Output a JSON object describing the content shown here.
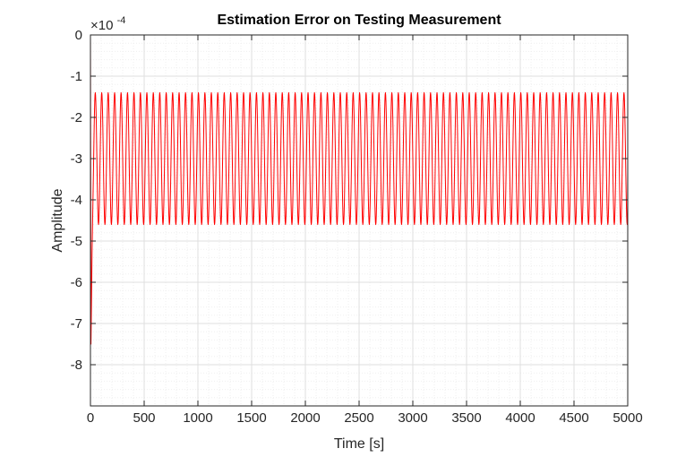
{
  "chart_data": {
    "type": "line",
    "title": "Estimation Error on Testing Measurement",
    "xlabel": "Time [s]",
    "ylabel": "Amplitude",
    "y_exponent_base": "×10",
    "y_exponent": "-4",
    "xlim": [
      0,
      5000
    ],
    "ylim": [
      -9,
      0
    ],
    "x_ticks": [
      0,
      500,
      1000,
      1500,
      2000,
      2500,
      3000,
      3500,
      4000,
      4500,
      5000
    ],
    "x_tick_labels": [
      "0",
      "500",
      "1000",
      "1500",
      "2000",
      "2500",
      "3000",
      "3500",
      "4000",
      "4500",
      "5000"
    ],
    "y_ticks": [
      0,
      -1,
      -2,
      -3,
      -4,
      -5,
      -6,
      -7,
      -8
    ],
    "y_tick_labels": [
      "0",
      "-1",
      "-2",
      "-3",
      "-4",
      "-5",
      "-6",
      "-7",
      "-8"
    ],
    "grid": true,
    "minor_grid": true,
    "series": [
      {
        "color": "#ff0000",
        "transient": [
          [
            0,
            0
          ],
          [
            5,
            -7.5
          ],
          [
            15,
            -5.3
          ],
          [
            30,
            -3.0
          ]
        ],
        "oscillation": {
          "start_x": 30,
          "end_x": 5000,
          "center": -3.0,
          "amplitude": 1.6,
          "period": 60,
          "end_value": -3.3
        }
      }
    ],
    "colors": {
      "axis": "#262626",
      "grid": "#dfdfdf",
      "minor_grid": "#efefef",
      "line": "#ff0000"
    }
  }
}
